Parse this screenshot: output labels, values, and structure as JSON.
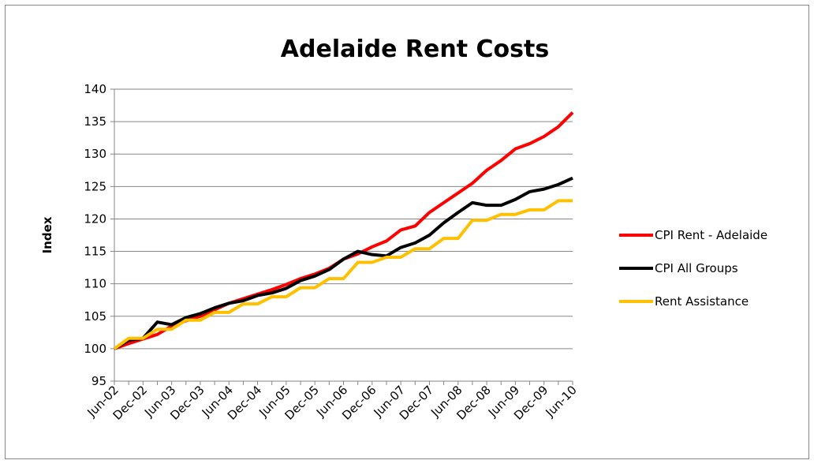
{
  "chart_data": {
    "type": "line",
    "title": "Adelaide Rent Costs",
    "y_label": "Index",
    "categories": [
      "Jun-02",
      null,
      "Dec-02",
      null,
      "Jun-03",
      null,
      "Dec-03",
      null,
      "Jun-04",
      null,
      "Dec-04",
      null,
      "Jun-05",
      null,
      "Dec-05",
      null,
      "Jun-06",
      null,
      "Dec-06",
      null,
      "Jun-07",
      null,
      "Dec-07",
      null,
      "Jun-08",
      null,
      "Dec-08",
      null,
      "Jun-09",
      null,
      "Dec-09",
      null,
      "Jun-10"
    ],
    "series": [
      {
        "name": "CPI Rent - Adelaide",
        "color": "#ff0000",
        "values": [
          100,
          100.8,
          101.5,
          102.2,
          103.5,
          104.3,
          105,
          106,
          107,
          107.7,
          108.4,
          109.1,
          109.9,
          110.8,
          111.5,
          112.4,
          113.8,
          114.6,
          115.7,
          116.6,
          118.3,
          118.9,
          121,
          122.5,
          124,
          125.5,
          127.5,
          129,
          130.8,
          131.6,
          132.7,
          134.2,
          136.4
        ]
      },
      {
        "name": "CPI All Groups",
        "color": "#000000",
        "values": [
          100,
          101.3,
          101.6,
          104.1,
          103.7,
          104.8,
          105.4,
          106.3,
          107,
          107.4,
          108.2,
          108.6,
          109.3,
          110.5,
          111.2,
          112.2,
          113.8,
          115,
          114.5,
          114.3,
          115.6,
          116.3,
          117.5,
          119.4,
          121,
          122.5,
          122.1,
          122.1,
          123,
          124.2,
          124.6,
          125.3,
          126.3
        ]
      },
      {
        "name": "Rent Assistance",
        "color": "#ffc000",
        "values": [
          100,
          101.6,
          101.6,
          103,
          103,
          104.4,
          104.4,
          105.6,
          105.6,
          106.9,
          106.9,
          108,
          108,
          109.4,
          109.4,
          110.8,
          110.8,
          113.3,
          113.3,
          114.1,
          114.1,
          115.4,
          115.4,
          117,
          117,
          119.8,
          119.8,
          120.7,
          120.7,
          121.4,
          121.4,
          122.8,
          122.8
        ]
      }
    ],
    "ylim": [
      95,
      140
    ],
    "yticks": [
      95,
      100,
      105,
      110,
      115,
      120,
      125,
      130,
      135,
      140
    ],
    "grid": true,
    "legend": "right"
  }
}
